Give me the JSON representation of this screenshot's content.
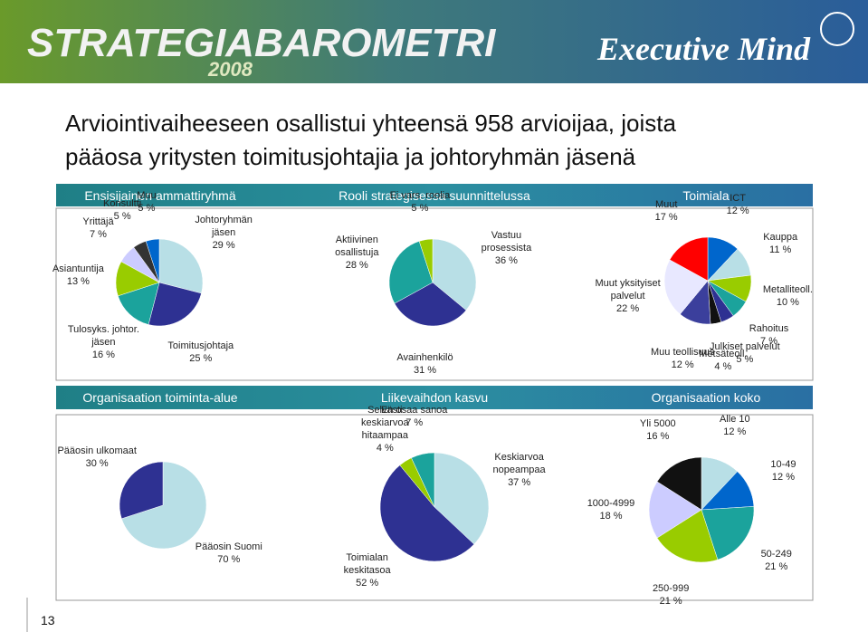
{
  "header": {
    "logo": "STRATEGIABAROMETRI",
    "year": "2008",
    "brand": "Executive Mind"
  },
  "title": [
    "Arviointivaiheeseen osallistui yhteensä 958 arvioijaa, joista",
    "pääosa yritysten toimitusjohtajia ja johtoryhmän jäsenä"
  ],
  "page_number": "13",
  "chart_data": [
    {
      "type": "pie",
      "title": "Ensisijainen ammattiryhmä",
      "categories": [
        "Johtoryhmän jäsen",
        "Toimitusjohtaja",
        "Tulosyks. johtor. jäsen",
        "Asiantuntija",
        "Yrittäjä",
        "Konsultti",
        "Muu"
      ],
      "values": [
        29,
        25,
        16,
        13,
        7,
        5,
        5
      ],
      "value_labels": [
        "29 %",
        "25 %",
        "16 %",
        "13 %",
        "7 %",
        "5 %",
        "5 %"
      ],
      "colors": [
        "#b8dfe6",
        "#2e3192",
        "#1ba39c",
        "#99cc00",
        "#ccccff",
        "#333333",
        "#0066cc"
      ]
    },
    {
      "type": "pie",
      "title": "Rooli strategisessa suunnittelussa",
      "categories": [
        "Vastuu prosessista",
        "Avainhenkilö",
        "Aktiivinen osallistuja",
        "Ei vars. roolia"
      ],
      "values": [
        36,
        31,
        28,
        5
      ],
      "value_labels": [
        "36 %",
        "31 %",
        "28 %",
        "5 %"
      ],
      "colors": [
        "#b8dfe6",
        "#2e3192",
        "#1ba39c",
        "#99cc00"
      ]
    },
    {
      "type": "pie",
      "title": "Toimiala",
      "categories": [
        "ICT",
        "Kauppa",
        "Metalliteoll.",
        "Rahoitus",
        "Julkiset palvelut",
        "Metsäteoll.",
        "Muu teollisuus",
        "Muut yksityiset palvelut",
        "Muut"
      ],
      "values": [
        12,
        11,
        10,
        7,
        5,
        4,
        12,
        22,
        17
      ],
      "value_labels": [
        "12 %",
        "11 %",
        "10 %",
        "7 %",
        "5 %",
        "4 %",
        "12 %",
        "22 %",
        "17 %"
      ],
      "colors": [
        "#0066cc",
        "#b8dfe6",
        "#99cc00",
        "#1ba39c",
        "#2e3192",
        "#111111",
        "#3b3f9c",
        "#e8e8ff",
        "#ff0000"
      ]
    },
    {
      "type": "pie",
      "title": "Organisaation toiminta-alue",
      "categories": [
        "Pääosin Suomi",
        "Pääosin ulkomaat"
      ],
      "values": [
        70,
        30
      ],
      "value_labels": [
        "70 %",
        "30 %"
      ],
      "colors": [
        "#b8dfe6",
        "#2e3192"
      ]
    },
    {
      "type": "pie",
      "title": "Liikevaihdon kasvu",
      "categories": [
        "Keskiarvoa nopeampaa",
        "Toimialan keskitasoa",
        "Selvästi keskiarvoa hitaampaa",
        "En osaa sanoa"
      ],
      "values": [
        37,
        52,
        4,
        7
      ],
      "value_labels": [
        "37 %",
        "52 %",
        "4 %",
        "7 %"
      ],
      "colors": [
        "#b8dfe6",
        "#2e3192",
        "#99cc00",
        "#1ba39c"
      ]
    },
    {
      "type": "pie",
      "title": "Organisaation koko",
      "categories": [
        "Alle 10",
        "10-49",
        "50-249",
        "250-999",
        "1000-4999",
        "Yli 5000"
      ],
      "values": [
        12,
        12,
        21,
        21,
        18,
        16
      ],
      "value_labels": [
        "12 %",
        "12 %",
        "21 %",
        "21 %",
        "18 %",
        "16 %"
      ],
      "colors": [
        "#b8dfe6",
        "#0066cc",
        "#1ba39c",
        "#99cc00",
        "#ccccff",
        "#111111"
      ]
    }
  ]
}
